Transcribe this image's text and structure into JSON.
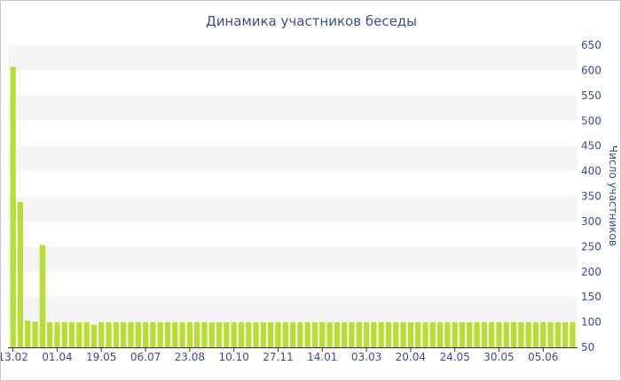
{
  "chart_data": {
    "type": "bar",
    "title": "Динамика участников беседы",
    "xlabel": "",
    "ylabel": "Число участников",
    "ylim": [
      50,
      650
    ],
    "yticks": [
      50,
      100,
      150,
      200,
      250,
      300,
      350,
      400,
      450,
      500,
      550,
      600,
      650
    ],
    "y_axis_side": "right",
    "grid": "horizontal bands",
    "legend": "none",
    "x_tick_labels": [
      "13.02",
      "01.04",
      "19.05",
      "06.07",
      "23.08",
      "10.10",
      "27.11",
      "14.01",
      "03.03",
      "20.04",
      "24.05",
      "30.05",
      "05.06"
    ],
    "values": [
      607,
      339,
      103,
      101,
      253,
      100,
      100,
      100,
      100,
      100,
      100,
      95,
      100,
      100,
      100,
      100,
      100,
      100,
      100,
      100,
      100,
      100,
      100,
      100,
      100,
      100,
      100,
      100,
      100,
      100,
      100,
      100,
      100,
      100,
      100,
      100,
      100,
      100,
      100,
      100,
      100,
      100,
      100,
      100,
      100,
      100,
      100,
      100,
      100,
      100,
      100,
      100,
      100,
      100,
      100,
      100,
      100,
      100,
      100,
      100,
      100,
      100,
      100,
      100,
      100,
      100,
      100,
      100,
      100,
      100,
      100,
      100,
      100,
      100,
      100,
      100,
      100
    ],
    "colors": {
      "bar": "#b7df33",
      "band": "#f5f5f5",
      "text": "#3a4f8a",
      "axis": "#333333"
    }
  }
}
